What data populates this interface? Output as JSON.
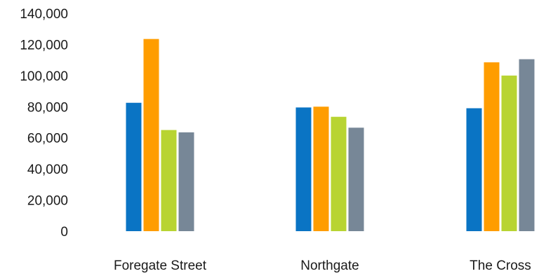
{
  "chart_data": {
    "type": "bar",
    "title": "",
    "xlabel": "",
    "ylabel": "",
    "categories": [
      "Foregate Street",
      "Northgate",
      "The Cross"
    ],
    "ylim": [
      0,
      140000
    ],
    "y_ticks": [
      "0",
      "20,000",
      "40,000",
      "60,000",
      "80,000",
      "100,000",
      "120,000",
      "140,000"
    ],
    "grid": false,
    "legend": "none",
    "series": [
      {
        "values": [
          82500,
          79500,
          79000
        ],
        "color": "#0a74c4"
      },
      {
        "values": [
          123500,
          80000,
          108500
        ],
        "color": "#ff9d00"
      },
      {
        "values": [
          65000,
          73500,
          100000
        ],
        "color": "#b8d432"
      },
      {
        "values": [
          63500,
          66500,
          110500
        ],
        "color": "#778797"
      }
    ]
  }
}
